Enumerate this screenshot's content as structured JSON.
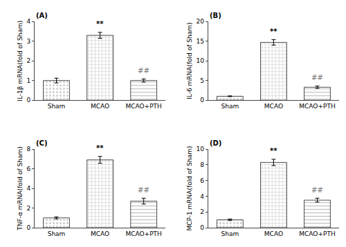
{
  "chart_data": [
    {
      "type": "bar",
      "title": "(A)",
      "ylabel": "IL-1β mRNA(fold of Sham)",
      "categories": [
        "Sham",
        "MCAO",
        "MCAO+PTH"
      ],
      "values": [
        1.0,
        3.3,
        1.0
      ],
      "errors": [
        0.12,
        0.15,
        0.08
      ],
      "colors": [
        "#c8c8c8",
        "#d0d0d0",
        "#c0c0c0"
      ],
      "ylim": [
        0,
        4
      ],
      "yticks": [
        0,
        1,
        2,
        3,
        4
      ],
      "grid": false,
      "annotations": [
        {
          "category": "MCAO",
          "text": "**"
        },
        {
          "category": "MCAO+PTH",
          "text": "##"
        }
      ]
    },
    {
      "type": "bar",
      "title": "(B)",
      "ylabel": "IL-6 mRNA(fold of Sham)",
      "categories": [
        "Sham",
        "MCAO",
        "MCAO+PTH"
      ],
      "values": [
        1.0,
        14.7,
        3.3
      ],
      "errors": [
        0.1,
        0.7,
        0.3
      ],
      "colors": [
        "#c8c8c8",
        "#d0d0d0",
        "#c0c0c0"
      ],
      "ylim": [
        0,
        20
      ],
      "yticks": [
        0,
        5,
        10,
        15,
        20
      ],
      "grid": false,
      "annotations": [
        {
          "category": "MCAO",
          "text": "**"
        },
        {
          "category": "MCAO+PTH",
          "text": "##"
        }
      ]
    },
    {
      "type": "bar",
      "title": "(C)",
      "ylabel": "TNF-α mRNA(fold of Sham)",
      "categories": [
        "Sham",
        "MCAO",
        "MCAO+PTH"
      ],
      "values": [
        1.0,
        6.9,
        2.7
      ],
      "errors": [
        0.1,
        0.35,
        0.3
      ],
      "colors": [
        "#c8c8c8",
        "#d0d0d0",
        "#c0c0c0"
      ],
      "ylim": [
        0,
        8
      ],
      "yticks": [
        0,
        2,
        4,
        6,
        8
      ],
      "grid": false,
      "annotations": [
        {
          "category": "MCAO",
          "text": "**"
        },
        {
          "category": "MCAO+PTH",
          "text": "##"
        }
      ]
    },
    {
      "type": "bar",
      "title": "(D)",
      "ylabel": "MCP-1 mRNA(fold of Sham)",
      "categories": [
        "Sham",
        "MCAO",
        "MCAO+PTH"
      ],
      "values": [
        1.0,
        8.3,
        3.5
      ],
      "errors": [
        0.1,
        0.4,
        0.25
      ],
      "colors": [
        "#c8c8c8",
        "#d0d0d0",
        "#c0c0c0"
      ],
      "ylim": [
        0,
        10
      ],
      "yticks": [
        0,
        2,
        4,
        6,
        8,
        10
      ],
      "grid": false,
      "annotations": [
        {
          "category": "MCAO",
          "text": "**"
        },
        {
          "category": "MCAO+PTH",
          "text": "##"
        }
      ]
    }
  ]
}
